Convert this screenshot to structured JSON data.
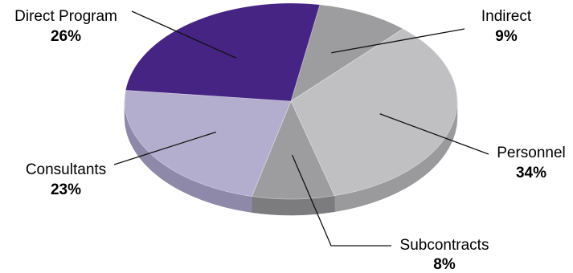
{
  "chart_data": {
    "type": "pie",
    "title": "",
    "slices": [
      {
        "label": "Indirect",
        "value": 9,
        "display": "9%",
        "color": "#9d9da0",
        "side": "#7a7a7d"
      },
      {
        "label": "Personnel",
        "value": 34,
        "display": "34%",
        "color": "#c0c0c3",
        "side": "#9a9a9d"
      },
      {
        "label": "Subcontracts",
        "value": 8,
        "display": "8%",
        "color": "#9d9da0",
        "side": "#7c7c7f"
      },
      {
        "label": "Consultants",
        "value": 23,
        "display": "23%",
        "color": "#b4aece",
        "side": "#8e89a8"
      },
      {
        "label": "Direct Program",
        "value": 26,
        "display": "26%",
        "color": "#452483",
        "side": "#2f1760"
      }
    ],
    "style": "3d-tilted",
    "legend": "none"
  }
}
